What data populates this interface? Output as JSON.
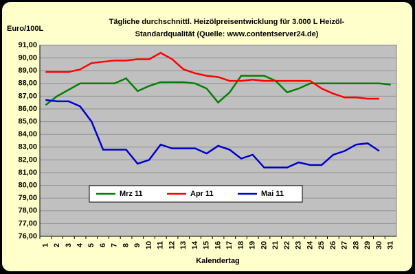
{
  "chart_data": {
    "type": "line",
    "title": [
      "Tägliche durchschnittl. Heizölpreisentwicklung für 3.000 L Heizöl-",
      "Standardqualität (Quelle: www.contentserver24.de)"
    ],
    "y_label": "Euro/100L",
    "x_label": "Kalendertag",
    "categories": [
      "1",
      "2",
      "3",
      "4",
      "5",
      "6",
      "7",
      "8",
      "9",
      "10",
      "11",
      "12",
      "13",
      "14",
      "15",
      "16",
      "17",
      "18",
      "19",
      "20",
      "21",
      "22",
      "23",
      "24",
      "25",
      "26",
      "27",
      "28",
      "29",
      "30",
      "31"
    ],
    "series": [
      {
        "name": "Mrz 11",
        "color": "#008000",
        "values": [
          86.3,
          87.0,
          87.5,
          88.0,
          88.0,
          88.0,
          88.0,
          88.4,
          87.4,
          87.8,
          88.1,
          88.1,
          88.1,
          88.0,
          87.6,
          86.5,
          87.3,
          88.6,
          88.6,
          88.6,
          88.2,
          87.3,
          87.6,
          88.0,
          88.0,
          88.0,
          88.0,
          88.0,
          88.0,
          88.0,
          87.9
        ]
      },
      {
        "name": "Apr 11",
        "color": "#ff0000",
        "values": [
          88.9,
          88.9,
          88.9,
          89.1,
          89.6,
          89.7,
          89.8,
          89.8,
          89.9,
          89.9,
          90.4,
          89.9,
          89.1,
          88.8,
          88.6,
          88.5,
          88.2,
          88.2,
          88.3,
          88.2,
          88.2,
          88.2,
          88.2,
          88.2,
          87.6,
          87.2,
          86.9,
          86.9,
          86.8,
          86.8,
          null
        ]
      },
      {
        "name": "Mai 11",
        "color": "#0000cc",
        "values": [
          86.7,
          86.6,
          86.6,
          86.2,
          85.0,
          82.8,
          82.8,
          82.8,
          81.7,
          82.0,
          83.2,
          82.9,
          82.9,
          82.9,
          82.5,
          83.1,
          82.8,
          82.1,
          82.4,
          81.4,
          81.4,
          81.4,
          81.8,
          81.6,
          81.6,
          82.4,
          82.7,
          83.2,
          83.3,
          82.7,
          null
        ]
      }
    ],
    "ylim": [
      76,
      91
    ],
    "yticks": [
      {
        "value": 76,
        "label": "76,00"
      },
      {
        "value": 77,
        "label": "77,00"
      },
      {
        "value": 78,
        "label": "78,00"
      },
      {
        "value": 79,
        "label": "79,00"
      },
      {
        "value": 80,
        "label": "80,00"
      },
      {
        "value": 81,
        "label": "81,00"
      },
      {
        "value": 82,
        "label": "82,00"
      },
      {
        "value": 83,
        "label": "83,00"
      },
      {
        "value": 84,
        "label": "84,00"
      },
      {
        "value": 85,
        "label": "85,00"
      },
      {
        "value": 86,
        "label": "86,00"
      },
      {
        "value": 87,
        "label": "87,00"
      },
      {
        "value": 88,
        "label": "88,00"
      },
      {
        "value": 89,
        "label": "89,00"
      },
      {
        "value": 90,
        "label": "90,00"
      },
      {
        "value": 91,
        "label": "91,00"
      }
    ],
    "grid": true
  }
}
